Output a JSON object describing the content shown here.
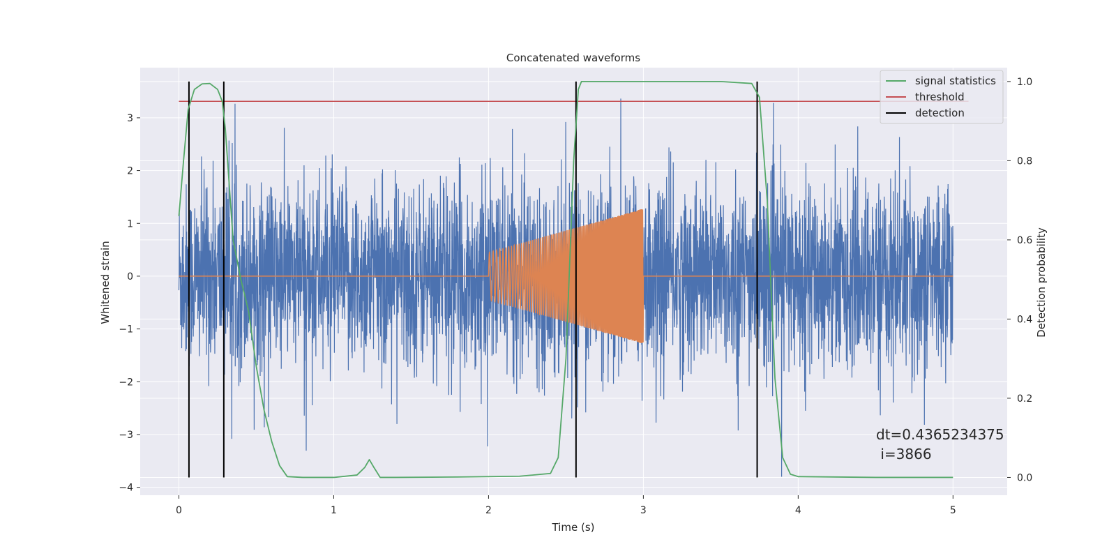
{
  "chart_data": {
    "type": "line",
    "title": "Concatenated waveforms",
    "xlabel": "Time (s)",
    "ylabel": "Whitened strain",
    "y2label": "Detection probability",
    "xlim": [
      -0.25,
      5.35
    ],
    "ylim": [
      -4.15,
      3.95
    ],
    "y2lim": [
      -0.045,
      1.035
    ],
    "xticks": [
      0,
      1,
      2,
      3,
      4,
      5
    ],
    "xtick_labels": [
      "0",
      "1",
      "2",
      "3",
      "4",
      "5"
    ],
    "yticks": [
      -4,
      -3,
      -2,
      -1,
      0,
      1,
      2,
      3
    ],
    "ytick_labels": [
      "−4",
      "−3",
      "−2",
      "−1",
      "0",
      "1",
      "2",
      "3"
    ],
    "y2ticks": [
      0.0,
      0.2,
      0.4,
      0.6,
      0.8,
      1.0
    ],
    "y2tick_labels": [
      "0.0",
      "0.2",
      "0.4",
      "0.6",
      "0.8",
      "1.0"
    ],
    "grid": true,
    "legend_position": "top-right",
    "series": [
      {
        "name": "whitened strain (noise)",
        "axis": "left",
        "color": "#4c72b0",
        "x_range": [
          0,
          5
        ],
        "amplitude_typical": 1.1,
        "amplitude_peak": 3.6,
        "in_legend": false
      },
      {
        "name": "injected waveform",
        "axis": "left",
        "color": "#dd8452",
        "x_range": [
          0,
          5
        ],
        "chirp_start": 2.0,
        "chirp_end": 3.0,
        "chirp_amplitude_start": 0.45,
        "chirp_amplitude_end": 1.28,
        "in_legend": false
      },
      {
        "name": "signal statistics",
        "axis": "right",
        "color": "#55a868",
        "in_legend": true,
        "x": [
          0,
          0.03,
          0.06,
          0.1,
          0.15,
          0.2,
          0.25,
          0.28,
          0.3,
          0.35,
          0.4,
          0.45,
          0.5,
          0.55,
          0.6,
          0.65,
          0.7,
          0.8,
          1.0,
          1.15,
          1.2,
          1.23,
          1.26,
          1.3,
          1.4,
          1.8,
          2.2,
          2.4,
          2.45,
          2.5,
          2.55,
          2.58,
          2.6,
          3.0,
          3.5,
          3.7,
          3.75,
          3.8,
          3.85,
          3.9,
          3.95,
          4.0,
          4.5,
          5.0
        ],
        "y": [
          0.66,
          0.8,
          0.93,
          0.98,
          0.994,
          0.995,
          0.98,
          0.95,
          0.88,
          0.6,
          0.5,
          0.42,
          0.28,
          0.17,
          0.09,
          0.03,
          0.002,
          0.0,
          0.0,
          0.006,
          0.025,
          0.045,
          0.025,
          0.0,
          0.0,
          0.001,
          0.003,
          0.01,
          0.05,
          0.3,
          0.8,
          0.98,
          1.0,
          1.0,
          1.0,
          0.995,
          0.96,
          0.7,
          0.25,
          0.05,
          0.008,
          0.002,
          0.0,
          0.0
        ]
      },
      {
        "name": "threshold",
        "axis": "right",
        "color": "#c44e52",
        "value": 0.95,
        "x_range": [
          0,
          5.1
        ],
        "in_legend": true
      },
      {
        "name": "detection",
        "axis": "right",
        "color": "#000000",
        "x": [
          0.065,
          0.29,
          2.565,
          3.735
        ],
        "y_range": [
          0,
          1
        ],
        "in_legend": true
      }
    ],
    "legend": [
      "signal statistics",
      "threshold",
      "detection"
    ],
    "annotation": [
      "dt=0.4365234375",
      " i=3866"
    ]
  },
  "colors": {
    "axes_bg": "#eaeaf2",
    "grid": "#ffffff",
    "noise": "#4c72b0",
    "waveform": "#dd8452",
    "stat": "#55a868",
    "threshold": "#c44e52",
    "detection": "#000000"
  }
}
